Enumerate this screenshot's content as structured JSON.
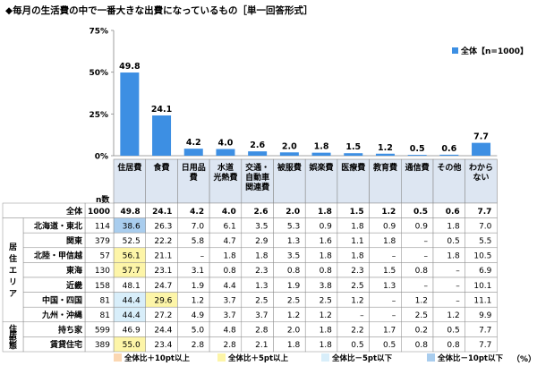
{
  "title": "◆毎月の生活費の中で一番大きな出費になっているもの［単一回答形式］",
  "n_header": "n数",
  "unit": "（%）",
  "colors": {
    "bar": "#3d8fe3",
    "plus10": "#fbd7b2",
    "plus5": "#fdf5a8",
    "minus5": "#d8eefa",
    "minus10": "#a9cdee",
    "header_bg": "#dde6f2"
  },
  "chart_data": {
    "type": "bar",
    "categories": [
      "住居費",
      "食費",
      "日用品費",
      "水道光熱費",
      "交通・自動車関連費",
      "被服費",
      "娯楽費",
      "医療費",
      "教育費",
      "通信費",
      "その他",
      "わからない"
    ],
    "values": [
      49.8,
      24.1,
      4.2,
      4.0,
      2.6,
      2.0,
      1.8,
      1.5,
      1.2,
      0.5,
      0.6,
      7.7
    ],
    "series": [
      {
        "name": "全体【n=1000】",
        "values": [
          49.8,
          24.1,
          4.2,
          4.0,
          2.6,
          2.0,
          1.8,
          1.5,
          1.2,
          0.5,
          0.6,
          7.7
        ]
      }
    ],
    "ylim": [
      0,
      75
    ],
    "yticks": [
      "0%",
      "25%",
      "50%",
      "75%"
    ],
    "legend_position": "top-right"
  },
  "table": {
    "headers": [
      "住居費",
      "食費",
      "日用品費",
      "水道光熱費",
      "交通・自動車関連費",
      "被服費",
      "娯楽費",
      "医療費",
      "教育費",
      "通信費",
      "その他",
      "わからない"
    ],
    "header_lines": [
      [
        "住居費"
      ],
      [
        "食費"
      ],
      [
        "日用品",
        "費"
      ],
      [
        "水道",
        "光熱費"
      ],
      [
        "交通・",
        "自動車",
        "関連費"
      ],
      [
        "被服費"
      ],
      [
        "娯楽費"
      ],
      [
        "医療費"
      ],
      [
        "教育費"
      ],
      [
        "通信費"
      ],
      [
        "その他"
      ],
      [
        "わから",
        "ない"
      ]
    ],
    "total": {
      "label": "全体",
      "n": "1000",
      "values": [
        "49.8",
        "24.1",
        "4.2",
        "4.0",
        "2.6",
        "2.0",
        "1.8",
        "1.5",
        "1.2",
        "0.5",
        "0.6",
        "7.7"
      ]
    },
    "groups": [
      {
        "label_chars": [
          "居",
          "住",
          "エ",
          "リ",
          "ア"
        ],
        "rows": [
          {
            "label": "北海道・東北",
            "n": "114",
            "values": [
              "38.6",
              "26.3",
              "7.0",
              "6.1",
              "3.5",
              "5.3",
              "0.9",
              "1.8",
              "0.9",
              "0.9",
              "1.8",
              "7.0"
            ],
            "hl": [
              "minus10",
              null,
              null,
              null,
              null,
              null,
              null,
              null,
              null,
              null,
              null,
              null
            ]
          },
          {
            "label": "関東",
            "n": "379",
            "values": [
              "52.5",
              "22.2",
              "5.8",
              "4.7",
              "2.9",
              "1.3",
              "1.6",
              "1.1",
              "1.8",
              "–",
              "0.5",
              "5.5"
            ],
            "hl": [
              null,
              null,
              null,
              null,
              null,
              null,
              null,
              null,
              null,
              null,
              null,
              null
            ]
          },
          {
            "label": "北陸・甲信越",
            "n": "57",
            "values": [
              "56.1",
              "21.1",
              "–",
              "1.8",
              "1.8",
              "3.5",
              "1.8",
              "1.8",
              "–",
              "–",
              "1.8",
              "10.5"
            ],
            "hl": [
              "plus5",
              null,
              null,
              null,
              null,
              null,
              null,
              null,
              null,
              null,
              null,
              null
            ]
          },
          {
            "label": "東海",
            "n": "130",
            "values": [
              "57.7",
              "23.1",
              "3.1",
              "0.8",
              "2.3",
              "0.8",
              "0.8",
              "2.3",
              "1.5",
              "0.8",
              "–",
              "6.9"
            ],
            "hl": [
              "plus5",
              null,
              null,
              null,
              null,
              null,
              null,
              null,
              null,
              null,
              null,
              null
            ]
          },
          {
            "label": "近畿",
            "n": "158",
            "values": [
              "48.1",
              "24.7",
              "1.9",
              "4.4",
              "1.3",
              "1.9",
              "3.8",
              "2.5",
              "1.3",
              "–",
              "–",
              "10.1"
            ],
            "hl": [
              null,
              null,
              null,
              null,
              null,
              null,
              null,
              null,
              null,
              null,
              null,
              null
            ]
          },
          {
            "label": "中国・四国",
            "n": "81",
            "values": [
              "44.4",
              "29.6",
              "1.2",
              "3.7",
              "2.5",
              "2.5",
              "2.5",
              "1.2",
              "–",
              "1.2",
              "–",
              "11.1"
            ],
            "hl": [
              "minus5",
              "plus5",
              null,
              null,
              null,
              null,
              null,
              null,
              null,
              null,
              null,
              null
            ]
          },
          {
            "label": "九州・沖縄",
            "n": "81",
            "values": [
              "44.4",
              "27.2",
              "4.9",
              "3.7",
              "3.7",
              "1.2",
              "1.2",
              "–",
              "–",
              "2.5",
              "1.2",
              "9.9"
            ],
            "hl": [
              "minus5",
              null,
              null,
              null,
              null,
              null,
              null,
              null,
              null,
              null,
              null,
              null
            ]
          }
        ]
      },
      {
        "label_chars": [
          "住",
          "居",
          "形",
          "態"
        ],
        "rows": [
          {
            "label": "持ち家",
            "n": "599",
            "values": [
              "46.9",
              "24.4",
              "5.0",
              "4.8",
              "2.8",
              "2.0",
              "1.8",
              "2.2",
              "1.7",
              "0.2",
              "0.5",
              "7.7"
            ],
            "hl": [
              null,
              null,
              null,
              null,
              null,
              null,
              null,
              null,
              null,
              null,
              null,
              null
            ]
          },
          {
            "label": "賃貸住宅",
            "n": "389",
            "values": [
              "55.0",
              "23.4",
              "2.8",
              "2.8",
              "2.1",
              "1.8",
              "1.8",
              "0.5",
              "0.5",
              "0.8",
              "0.8",
              "7.7"
            ],
            "hl": [
              "plus5",
              null,
              null,
              null,
              null,
              null,
              null,
              null,
              null,
              null,
              null,
              null
            ]
          }
        ]
      }
    ]
  },
  "legend_items": [
    {
      "key": "plus10",
      "label": "全体比＋10pt以上"
    },
    {
      "key": "plus5",
      "label": "全体比＋5pt以上"
    },
    {
      "key": "minus5",
      "label": "全体比－5pt以下"
    },
    {
      "key": "minus10",
      "label": "全体比－10pt以下"
    }
  ]
}
